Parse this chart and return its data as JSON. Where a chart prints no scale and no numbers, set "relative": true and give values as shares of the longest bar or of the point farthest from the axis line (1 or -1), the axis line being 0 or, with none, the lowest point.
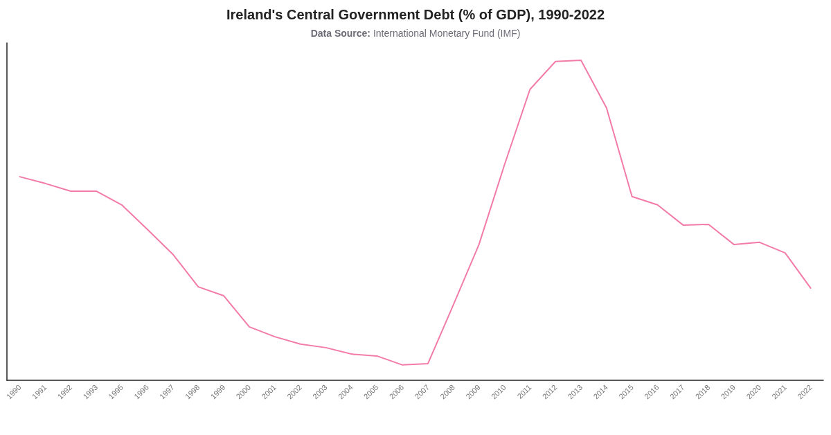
{
  "chart_data": {
    "type": "line",
    "title": "Ireland's Central Government Debt (% of GDP), 1990-2022",
    "subtitle": "Data Source: International Monetary Fund (IMF)",
    "categories": [
      "1990",
      "1991",
      "1992",
      "1993",
      "1995",
      "1996",
      "1997",
      "1998",
      "1999",
      "2000",
      "2001",
      "2002",
      "2003",
      "2004",
      "2005",
      "2006",
      "2007",
      "2008",
      "2009",
      "2010",
      "2011",
      "2012",
      "2013",
      "2014",
      "2015",
      "2016",
      "2017",
      "2018",
      "2019",
      "2020",
      "2021",
      "2022"
    ],
    "values": [
      0.636,
      0.615,
      0.591,
      0.591,
      0.548,
      0.472,
      0.394,
      0.292,
      0.264,
      0.167,
      0.136,
      0.113,
      0.102,
      0.082,
      0.076,
      0.048,
      0.052,
      0.236,
      0.424,
      0.673,
      0.909,
      0.996,
      1,
      0.851,
      0.574,
      0.548,
      0.485,
      0.487,
      0.424,
      0.431,
      0.398,
      0.288
    ],
    "color": "#f27ba8",
    "relative": true,
    "marker": "none",
    "line_style": "solid"
  }
}
